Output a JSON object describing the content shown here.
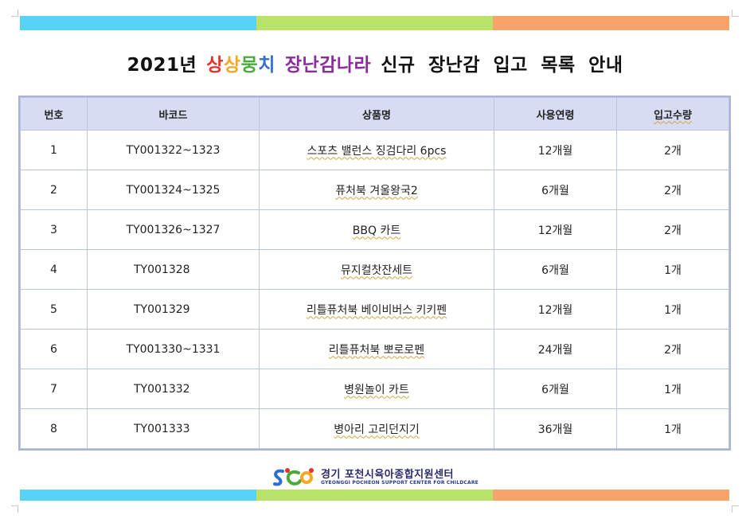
{
  "colors": {
    "stripe": [
      "#59d2f7",
      "#b9e26a",
      "#f8a36a"
    ],
    "title_highlight_1": [
      "#e5332a",
      "#f6a623",
      "#4aab3b",
      "#2f6fd0"
    ],
    "title_highlight_2": "#8b2b9e",
    "header_bg": "#d7dcf2",
    "border": "#a9b4d9"
  },
  "title": {
    "prefix": "2021년",
    "brand_chars": [
      "상",
      "상",
      "뭉",
      "치"
    ],
    "brand_2": "장난감나라",
    "suffix": "신규 장난감 입고 목록 안내"
  },
  "table": {
    "headers": [
      "번호",
      "바코드",
      "상품명",
      "사용연령",
      "입고수량"
    ],
    "rows": [
      {
        "no": "1",
        "barcode": "TY001322~1323",
        "name": "스포츠 밸런스 징검다리 6pcs",
        "age": "12개월",
        "qty": "2개"
      },
      {
        "no": "2",
        "barcode": "TY001324~1325",
        "name": "퓨처북 겨울왕국2",
        "age": "6개월",
        "qty": "2개"
      },
      {
        "no": "3",
        "barcode": "TY001326~1327",
        "name": "BBQ 카트",
        "age": "12개월",
        "qty": "2개"
      },
      {
        "no": "4",
        "barcode": "TY001328",
        "name": "뮤지컬찻잔세트",
        "age": "6개월",
        "qty": "1개"
      },
      {
        "no": "5",
        "barcode": "TY001329",
        "name": "리틀퓨처북 베이비버스 키키펜",
        "age": "12개월",
        "qty": "1개"
      },
      {
        "no": "6",
        "barcode": "TY001330~1331",
        "name": "리틀퓨처북 뽀로로펜",
        "age": "24개월",
        "qty": "2개"
      },
      {
        "no": "7",
        "barcode": "TY001332",
        "name": "병원놀이 카트",
        "age": "6개월",
        "qty": "1개"
      },
      {
        "no": "8",
        "barcode": "TY001333",
        "name": "병아리 고리던지기",
        "age": "36개월",
        "qty": "1개"
      }
    ]
  },
  "footer": {
    "org_kor": "경기 포천시육아종합지원센터",
    "org_eng": "GYEONGGI POCHEON SUPPORT CENTER FOR CHILDCARE",
    "logo_icon": "scc-logo-icon"
  }
}
